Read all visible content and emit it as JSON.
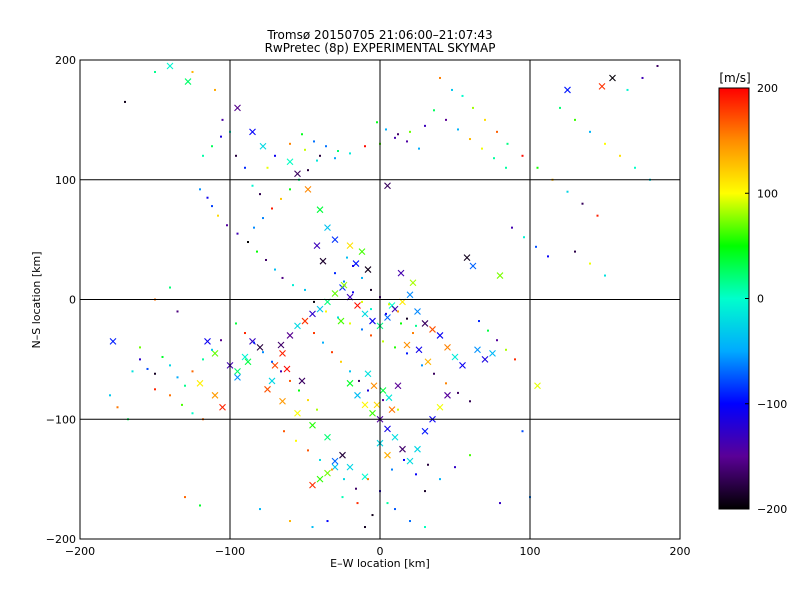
{
  "chart_data": {
    "type": "scatter",
    "title": "Tromsø 20150705 21:06:00–21:07:43",
    "subtitle": "RwPretec (8p) EXPERIMENTAL SKYMAP",
    "xlabel": "E–W location [km]",
    "ylabel": "N–S location [km]",
    "xlim": [
      -200,
      200
    ],
    "ylim": [
      -200,
      200
    ],
    "x_ticks": [
      "−200",
      "−100",
      "0",
      "100",
      "200"
    ],
    "y_ticks": [
      "−200",
      "−100",
      "0",
      "100",
      "200"
    ],
    "x_tick_values": [
      -200,
      -100,
      0,
      100,
      200
    ],
    "y_tick_values": [
      -200,
      -100,
      0,
      100,
      200
    ],
    "grid": true,
    "colorbar": {
      "label": "[m/s]",
      "min": -200,
      "max": 200,
      "ticks": [
        "200",
        "100",
        "0",
        "−100",
        "−200"
      ],
      "tick_values": [
        200,
        100,
        0,
        -100,
        -200
      ],
      "colormap": [
        "#000000",
        "#5a0096",
        "#0000ff",
        "#00aaff",
        "#00ffcc",
        "#00ff00",
        "#ffff00",
        "#ff8c00",
        "#ff0000"
      ]
    },
    "series": [
      {
        "marker": "x",
        "points": [
          [
            -140,
            195
          ],
          [
            -128,
            182
          ],
          [
            -95,
            160
          ],
          [
            -85,
            140
          ],
          [
            -78,
            128
          ],
          [
            -60,
            115
          ],
          [
            -55,
            105
          ],
          [
            -48,
            92
          ],
          [
            -40,
            75
          ],
          [
            -35,
            60
          ],
          [
            -30,
            50
          ],
          [
            -20,
            45
          ],
          [
            -12,
            40
          ],
          [
            5,
            95
          ],
          [
            8,
            -5
          ],
          [
            -115,
            -35
          ],
          [
            -110,
            -45
          ],
          [
            -100,
            -55
          ],
          [
            -95,
            -60
          ],
          [
            -90,
            -48
          ],
          [
            -85,
            -35
          ],
          [
            -80,
            -40
          ],
          [
            -70,
            -55
          ],
          [
            -65,
            -45
          ],
          [
            -60,
            -30
          ],
          [
            -55,
            -22
          ],
          [
            -50,
            -18
          ],
          [
            -45,
            -12
          ],
          [
            -40,
            -8
          ],
          [
            -35,
            -2
          ],
          [
            -30,
            5
          ],
          [
            -25,
            10
          ],
          [
            -20,
            2
          ],
          [
            -15,
            -5
          ],
          [
            -10,
            -12
          ],
          [
            -5,
            -18
          ],
          [
            0,
            -22
          ],
          [
            5,
            -15
          ],
          [
            10,
            -8
          ],
          [
            15,
            -2
          ],
          [
            20,
            4
          ],
          [
            25,
            -10
          ],
          [
            30,
            -20
          ],
          [
            35,
            -25
          ],
          [
            40,
            -30
          ],
          [
            45,
            -40
          ],
          [
            50,
            -48
          ],
          [
            55,
            -55
          ],
          [
            -20,
            -70
          ],
          [
            -15,
            -80
          ],
          [
            -10,
            -88
          ],
          [
            -5,
            -95
          ],
          [
            0,
            -100
          ],
          [
            5,
            -108
          ],
          [
            10,
            -115
          ],
          [
            15,
            -125
          ],
          [
            -25,
            -130
          ],
          [
            -30,
            -140
          ],
          [
            -35,
            -145
          ],
          [
            -40,
            -150
          ],
          [
            -45,
            -155
          ],
          [
            -30,
            -135
          ],
          [
            -20,
            -140
          ],
          [
            -10,
            -148
          ],
          [
            0,
            -120
          ],
          [
            5,
            -130
          ],
          [
            20,
            -135
          ],
          [
            25,
            -125
          ],
          [
            30,
            -110
          ],
          [
            35,
            -100
          ],
          [
            40,
            -90
          ],
          [
            45,
            -80
          ],
          [
            -178,
            -35
          ],
          [
            -120,
            -70
          ],
          [
            -110,
            -80
          ],
          [
            -105,
            -90
          ],
          [
            -75,
            -75
          ],
          [
            -65,
            -85
          ],
          [
            -55,
            -95
          ],
          [
            -45,
            -105
          ],
          [
            -35,
            -115
          ],
          [
            58,
            35
          ],
          [
            62,
            28
          ],
          [
            65,
            -42
          ],
          [
            70,
            -50
          ],
          [
            75,
            -45
          ],
          [
            80,
            20
          ],
          [
            105,
            -72
          ],
          [
            125,
            175
          ],
          [
            148,
            178
          ],
          [
            155,
            185
          ],
          [
            -95,
            -65
          ],
          [
            -88,
            -52
          ],
          [
            -72,
            -68
          ],
          [
            -66,
            -38
          ],
          [
            -62,
            -58
          ],
          [
            -8,
            -62
          ],
          [
            -4,
            -72
          ],
          [
            2,
            -76
          ],
          [
            6,
            -82
          ],
          [
            12,
            -72
          ],
          [
            -2,
            -88
          ],
          [
            8,
            -92
          ],
          [
            -16,
            30
          ],
          [
            -8,
            25
          ],
          [
            14,
            22
          ],
          [
            22,
            14
          ],
          [
            -24,
            12
          ],
          [
            -26,
            -18
          ],
          [
            18,
            -38
          ],
          [
            26,
            -42
          ],
          [
            32,
            -52
          ],
          [
            -42,
            45
          ],
          [
            -38,
            32
          ],
          [
            -52,
            -68
          ]
        ]
      },
      {
        "marker": "dot",
        "points": [
          [
            -170,
            165
          ],
          [
            -150,
            190
          ],
          [
            -125,
            190
          ],
          [
            -110,
            175
          ],
          [
            -105,
            150
          ],
          [
            -100,
            140
          ],
          [
            -96,
            120
          ],
          [
            -90,
            110
          ],
          [
            -85,
            95
          ],
          [
            -80,
            88
          ],
          [
            -120,
            92
          ],
          [
            -115,
            85
          ],
          [
            -112,
            78
          ],
          [
            -108,
            70
          ],
          [
            -102,
            62
          ],
          [
            -95,
            55
          ],
          [
            -88,
            48
          ],
          [
            -82,
            40
          ],
          [
            -76,
            33
          ],
          [
            -70,
            25
          ],
          [
            -65,
            18
          ],
          [
            -58,
            12
          ],
          [
            -50,
            8
          ],
          [
            -44,
            -2
          ],
          [
            -36,
            -10
          ],
          [
            -28,
            -15
          ],
          [
            -20,
            -20
          ],
          [
            -12,
            -25
          ],
          [
            -6,
            -30
          ],
          [
            2,
            -35
          ],
          [
            10,
            -40
          ],
          [
            18,
            -45
          ],
          [
            28,
            -55
          ],
          [
            36,
            -62
          ],
          [
            44,
            -70
          ],
          [
            52,
            -78
          ],
          [
            60,
            -85
          ],
          [
            -160,
            -50
          ],
          [
            -155,
            -58
          ],
          [
            -150,
            -62
          ],
          [
            -145,
            -48
          ],
          [
            -140,
            -55
          ],
          [
            -135,
            -65
          ],
          [
            -130,
            -72
          ],
          [
            -125,
            -60
          ],
          [
            -118,
            -50
          ],
          [
            -112,
            -42
          ],
          [
            -106,
            -34
          ],
          [
            -140,
            -80
          ],
          [
            -132,
            -88
          ],
          [
            -125,
            -95
          ],
          [
            -118,
            -100
          ],
          [
            -160,
            -40
          ],
          [
            -165,
            -60
          ],
          [
            -150,
            -75
          ],
          [
            40,
            185
          ],
          [
            48,
            175
          ],
          [
            55,
            170
          ],
          [
            62,
            160
          ],
          [
            70,
            150
          ],
          [
            78,
            140
          ],
          [
            85,
            130
          ],
          [
            95,
            120
          ],
          [
            105,
            110
          ],
          [
            115,
            100
          ],
          [
            125,
            90
          ],
          [
            135,
            80
          ],
          [
            145,
            70
          ],
          [
            120,
            160
          ],
          [
            130,
            150
          ],
          [
            140,
            140
          ],
          [
            150,
            130
          ],
          [
            160,
            120
          ],
          [
            170,
            110
          ],
          [
            180,
            100
          ],
          [
            -60,
            130
          ],
          [
            -50,
            125
          ],
          [
            -40,
            120
          ],
          [
            -30,
            118
          ],
          [
            -20,
            122
          ],
          [
            -10,
            128
          ],
          [
            0,
            130
          ],
          [
            10,
            135
          ],
          [
            20,
            140
          ],
          [
            30,
            145
          ],
          [
            0,
            -160
          ],
          [
            5,
            -170
          ],
          [
            10,
            -175
          ],
          [
            -5,
            -180
          ],
          [
            -15,
            -170
          ],
          [
            -25,
            -165
          ],
          [
            30,
            -160
          ],
          [
            40,
            -150
          ],
          [
            50,
            -140
          ],
          [
            60,
            -130
          ],
          [
            -70,
            120
          ],
          [
            -75,
            110
          ],
          [
            95,
            -110
          ],
          [
            -130,
            -165
          ],
          [
            -120,
            -172
          ],
          [
            -80,
            -175
          ],
          [
            -60,
            -185
          ],
          [
            80,
            -170
          ],
          [
            100,
            -165
          ],
          [
            -180,
            -80
          ],
          [
            -175,
            -90
          ],
          [
            -168,
            -100
          ],
          [
            185,
            195
          ],
          [
            175,
            185
          ],
          [
            165,
            175
          ],
          [
            -35,
            -185
          ],
          [
            -45,
            -190
          ],
          [
            30,
            -190
          ],
          [
            20,
            -185
          ],
          [
            -10,
            -190
          ],
          [
            130,
            40
          ],
          [
            140,
            30
          ],
          [
            150,
            20
          ],
          [
            -140,
            10
          ],
          [
            -150,
            0
          ],
          [
            -135,
            -10
          ],
          [
            -22,
            35
          ],
          [
            -18,
            28
          ],
          [
            -12,
            18
          ],
          [
            -6,
            8
          ],
          [
            0,
            2
          ],
          [
            6,
            -4
          ],
          [
            12,
            -10
          ],
          [
            18,
            -16
          ],
          [
            24,
            -22
          ],
          [
            -30,
            22
          ],
          [
            -24,
            15
          ],
          [
            -18,
            6
          ],
          [
            -12,
            -2
          ],
          [
            -6,
            -8
          ],
          [
            4,
            -12
          ],
          [
            14,
            -20
          ],
          [
            22,
            -28
          ],
          [
            -44,
            -28
          ],
          [
            -38,
            -36
          ],
          [
            -32,
            -44
          ],
          [
            -26,
            -52
          ],
          [
            -20,
            -60
          ],
          [
            -14,
            -68
          ],
          [
            -8,
            -76
          ],
          [
            2,
            -84
          ],
          [
            12,
            -92
          ],
          [
            -96,
            -20
          ],
          [
            -90,
            -28
          ],
          [
            -84,
            -36
          ],
          [
            -78,
            -44
          ],
          [
            -72,
            -52
          ],
          [
            -66,
            -60
          ],
          [
            -60,
            -68
          ],
          [
            -54,
            -76
          ],
          [
            -48,
            -84
          ],
          [
            -42,
            -92
          ],
          [
            66,
            -18
          ],
          [
            72,
            -26
          ],
          [
            78,
            -34
          ],
          [
            84,
            -42
          ],
          [
            90,
            -50
          ],
          [
            -52,
            138
          ],
          [
            -44,
            132
          ],
          [
            -36,
            128
          ],
          [
            -28,
            124
          ],
          [
            36,
            158
          ],
          [
            44,
            150
          ],
          [
            52,
            142
          ],
          [
            60,
            134
          ],
          [
            68,
            126
          ],
          [
            76,
            118
          ],
          [
            84,
            110
          ],
          [
            -2,
            148
          ],
          [
            4,
            142
          ],
          [
            12,
            138
          ],
          [
            18,
            132
          ],
          [
            26,
            126
          ],
          [
            -64,
            -110
          ],
          [
            -56,
            -118
          ],
          [
            -48,
            -126
          ],
          [
            -40,
            -134
          ],
          [
            -32,
            -142
          ],
          [
            -24,
            -150
          ],
          [
            -16,
            -158
          ],
          [
            -8,
            -150
          ],
          [
            8,
            -142
          ],
          [
            16,
            -134
          ],
          [
            24,
            -146
          ],
          [
            32,
            -138
          ],
          [
            -84,
            60
          ],
          [
            -78,
            68
          ],
          [
            -72,
            76
          ],
          [
            -66,
            84
          ],
          [
            -60,
            92
          ],
          [
            -54,
            100
          ],
          [
            -48,
            108
          ],
          [
            -42,
            116
          ],
          [
            88,
            60
          ],
          [
            96,
            52
          ],
          [
            104,
            44
          ],
          [
            112,
            36
          ],
          [
            -118,
            120
          ],
          [
            -112,
            128
          ],
          [
            -106,
            136
          ]
        ]
      }
    ]
  }
}
